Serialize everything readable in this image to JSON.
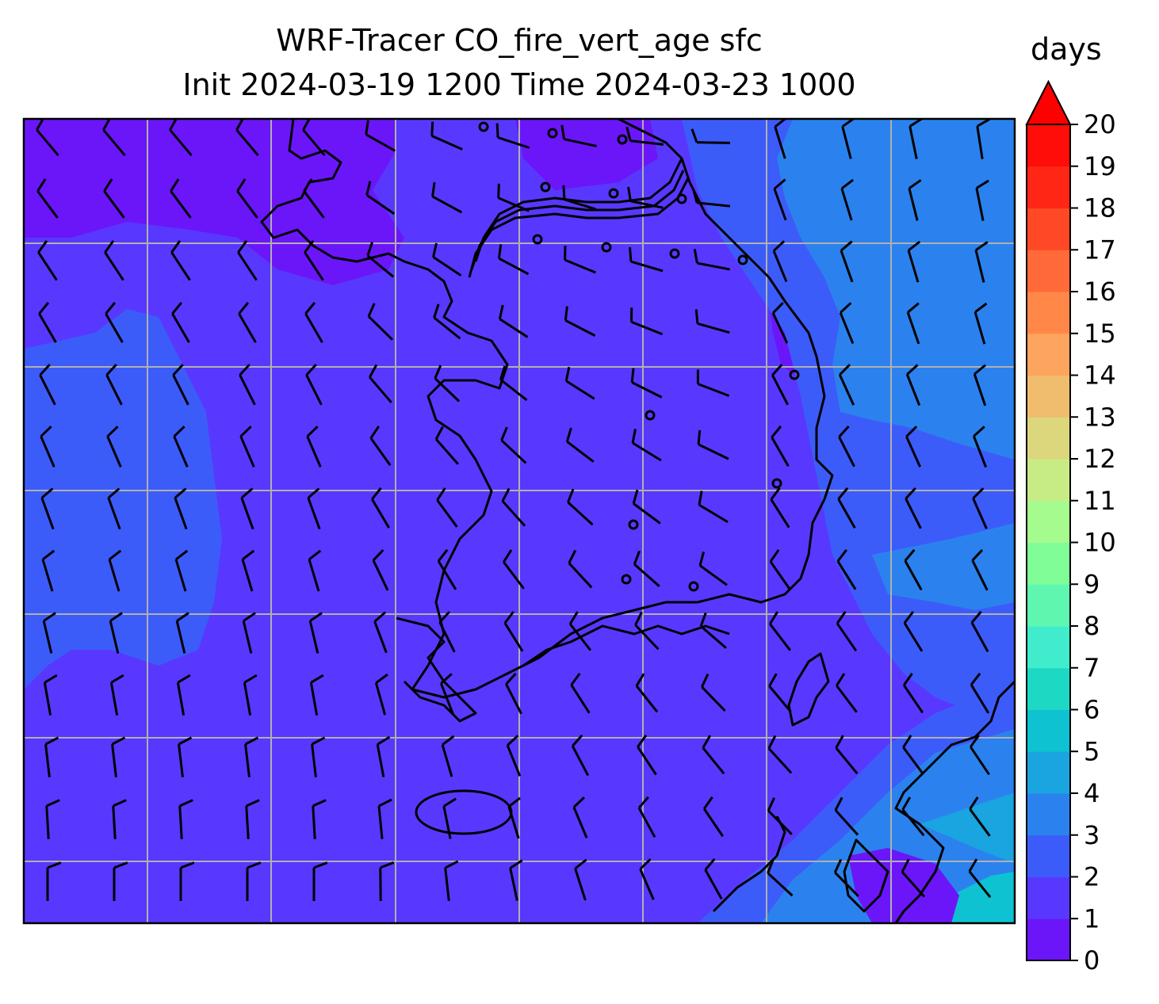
{
  "title_line1": "WRF-Tracer CO_fire_vert_age sfc",
  "title_line2": "Init 2024-03-19 1200 Time 2024-03-23 1000",
  "colorbar": {
    "label": "days",
    "ticks": [
      "0",
      "1",
      "2",
      "3",
      "4",
      "5",
      "6",
      "7",
      "8",
      "9",
      "10",
      "11",
      "12",
      "13",
      "14",
      "15",
      "16",
      "17",
      "18",
      "19",
      "20"
    ],
    "extend": "max",
    "colors": [
      "#6b16f9",
      "#5838fe",
      "#3c5cf9",
      "#2b82ee",
      "#1aa4e0",
      "#0ec2d2",
      "#1dd9c3",
      "#40eccc",
      "#5ff7b0",
      "#80fd97",
      "#a5fb8e",
      "#c8ec85",
      "#dcd67d",
      "#f0bc6d",
      "#fda45f",
      "#ff8848",
      "#ff6a38",
      "#ff4825",
      "#ff2615",
      "#ff0d08"
    ],
    "over_color": "#ff0000"
  },
  "map": {
    "field_background_color": "#5838fe",
    "grid": true
  }
}
